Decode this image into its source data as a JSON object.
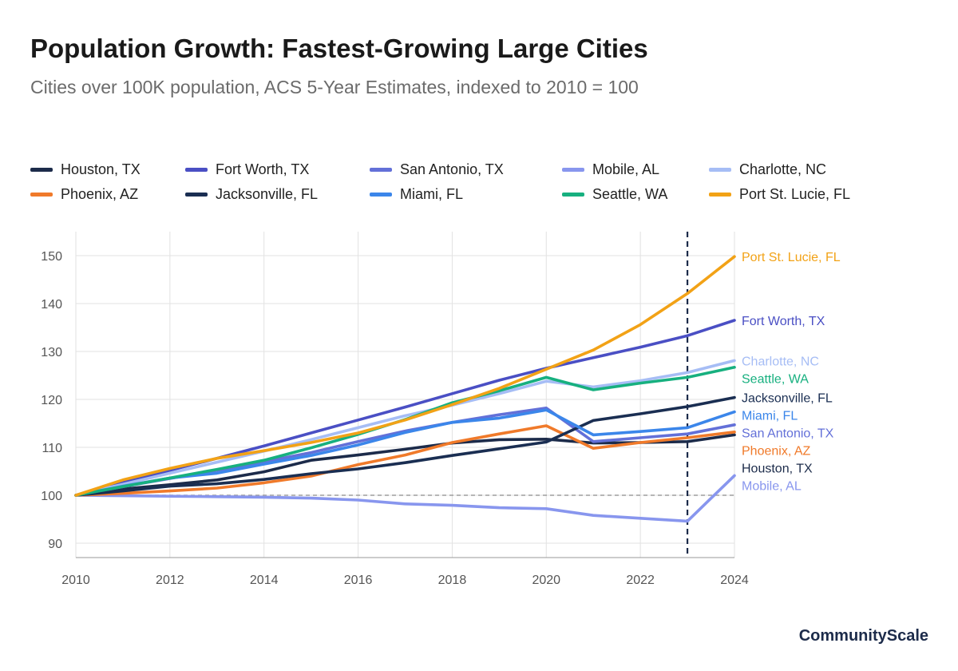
{
  "title": "Population Growth: Fastest-Growing Large Cities",
  "subtitle": "Cities over 100K population, ACS 5-Year Estimates, indexed to 2010 = 100",
  "brand": "CommunityScale",
  "chart_data": {
    "type": "line",
    "x": [
      2010,
      2011,
      2012,
      2013,
      2014,
      2015,
      2016,
      2017,
      2018,
      2019,
      2020,
      2021,
      2022,
      2023,
      2024
    ],
    "ylim": [
      87,
      155
    ],
    "xlim": [
      2010,
      2024
    ],
    "yticks": [
      90,
      100,
      110,
      120,
      130,
      140,
      150
    ],
    "xticks": [
      2010,
      2012,
      2014,
      2016,
      2018,
      2020,
      2022,
      2024
    ],
    "grid": true,
    "legend_position": "top",
    "reference_line": {
      "y": 100,
      "style": "dashed"
    },
    "marker_line": {
      "x": 2023,
      "style": "dashed"
    },
    "series": [
      {
        "name": "Houston, TX",
        "label": "Houston, TX",
        "color": "#1c2b4a",
        "values": [
          100,
          101.3,
          102.2,
          103.2,
          104.9,
          107.3,
          108.4,
          109.6,
          110.9,
          111.6,
          111.7,
          110.9,
          111,
          111.2,
          112.6
        ]
      },
      {
        "name": "Fort Worth, TX",
        "label": "Fort Worth, TX",
        "color": "#4a4fc4",
        "values": [
          100,
          102.7,
          105.2,
          107.7,
          110.3,
          113,
          115.7,
          118.4,
          121.2,
          124,
          126.5,
          128.7,
          130.9,
          133.3,
          136.5
        ]
      },
      {
        "name": "San Antonio, TX",
        "label": "San Antonio, TX",
        "color": "#6370d8",
        "values": [
          100,
          101.8,
          103.5,
          105.2,
          107,
          108.9,
          111.2,
          113.4,
          115.2,
          116.8,
          118.2,
          111.2,
          112,
          112.8,
          114.7
        ]
      },
      {
        "name": "Mobile, AL",
        "label": "Mobile, AL",
        "color": "#8896ee",
        "values": [
          100,
          99.9,
          99.8,
          99.7,
          99.6,
          99.4,
          99,
          98.2,
          97.9,
          97.4,
          97.2,
          95.8,
          95.2,
          94.6,
          104.1
        ]
      },
      {
        "name": "Charlotte, NC",
        "label": "Charlotte, NC",
        "color": "#a6bdf5",
        "values": [
          100,
          102.3,
          104.6,
          106.9,
          109.2,
          111.6,
          114.1,
          116.6,
          118.8,
          121.2,
          123.8,
          122.6,
          123.9,
          125.6,
          128.1
        ]
      },
      {
        "name": "Phoenix, AZ",
        "label": "Phoenix, AZ",
        "color": "#f07a2a",
        "values": [
          100,
          100.4,
          100.9,
          101.5,
          102.6,
          104,
          106.4,
          108.4,
          111,
          112.8,
          114.5,
          109.8,
          111,
          112,
          113.2
        ]
      },
      {
        "name": "Jacksonville, FL",
        "label": "Jacksonville, FL",
        "color": "#1a2e52",
        "values": [
          100,
          100.9,
          101.9,
          102.4,
          103.3,
          104.5,
          105.5,
          106.8,
          108.3,
          109.7,
          111.1,
          115.6,
          117,
          118.5,
          120.4
        ]
      },
      {
        "name": "Miami, FL",
        "label": "Miami, FL",
        "color": "#3b86ea",
        "values": [
          100,
          101.9,
          103.6,
          104.6,
          106.5,
          108.3,
          110.5,
          113.1,
          115.2,
          116.1,
          117.8,
          112.6,
          113.3,
          114.1,
          117.4
        ]
      },
      {
        "name": "Seattle, WA",
        "label": "Seattle, WA",
        "color": "#17b07f",
        "values": [
          100,
          101.8,
          103.6,
          105.4,
          107.3,
          109.9,
          112.7,
          115.8,
          119.3,
          121.8,
          124.6,
          122,
          123.4,
          124.6,
          126.7
        ]
      },
      {
        "name": "Port St. Lucie, FL",
        "label": "Port St. Lucie, FL",
        "color": "#f2a216",
        "values": [
          100,
          103.2,
          105.6,
          107.7,
          109.3,
          111,
          113,
          115.7,
          118.9,
          122.3,
          126.3,
          130.3,
          135.6,
          142.1,
          149.8
        ]
      }
    ],
    "legend_order": [
      "Houston, TX",
      "Fort Worth, TX",
      "San Antonio, TX",
      "Mobile, AL",
      "Charlotte, NC",
      "Phoenix, AZ",
      "Jacksonville, FL",
      "Miami, FL",
      "Seattle, WA",
      "Port St. Lucie, FL"
    ],
    "end_label_order": [
      "Port St. Lucie, FL",
      "Fort Worth, TX",
      "Charlotte, NC",
      "Seattle, WA",
      "Jacksonville, FL",
      "Miami, FL",
      "San Antonio, TX",
      "Phoenix, AZ",
      "Houston, TX",
      "Mobile, AL"
    ]
  }
}
